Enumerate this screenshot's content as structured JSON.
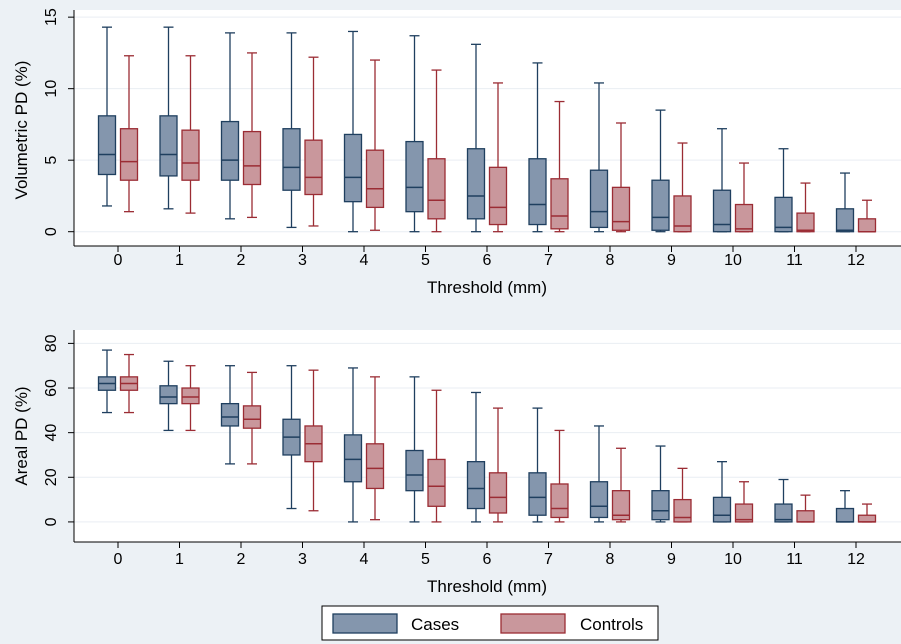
{
  "colors": {
    "cases_fill": "#8496ad",
    "cases_line": "#1f3f5f",
    "controls_fill": "#c9979c",
    "controls_line": "#9b2c34",
    "background": "#ecf1f5",
    "plot_area": "#ffffff",
    "grid": "#e9eef3"
  },
  "chart_data": [
    {
      "type": "box",
      "xlabel": "Threshold (mm)",
      "ylabel": "Volumetric PD (%)",
      "categories": [
        "0",
        "1",
        "2",
        "3",
        "4",
        "5",
        "6",
        "7",
        "8",
        "9",
        "10",
        "11",
        "12"
      ],
      "yticks": [
        0,
        5,
        10,
        15
      ],
      "ylim": [
        -1,
        15.5
      ],
      "grid": true,
      "series": [
        {
          "name": "Cases",
          "boxes": [
            {
              "min": 1.8,
              "q1": 4.0,
              "median": 5.4,
              "q3": 8.1,
              "max": 14.3
            },
            {
              "min": 1.6,
              "q1": 3.9,
              "median": 5.4,
              "q3": 8.1,
              "max": 14.3
            },
            {
              "min": 0.9,
              "q1": 3.6,
              "median": 5.0,
              "q3": 7.7,
              "max": 13.9
            },
            {
              "min": 0.3,
              "q1": 2.9,
              "median": 4.5,
              "q3": 7.2,
              "max": 13.9
            },
            {
              "min": 0.0,
              "q1": 2.1,
              "median": 3.8,
              "q3": 6.8,
              "max": 14.0
            },
            {
              "min": 0.0,
              "q1": 1.4,
              "median": 3.1,
              "q3": 6.3,
              "max": 13.7
            },
            {
              "min": 0.0,
              "q1": 0.9,
              "median": 2.5,
              "q3": 5.8,
              "max": 13.1
            },
            {
              "min": 0.0,
              "q1": 0.5,
              "median": 1.9,
              "q3": 5.1,
              "max": 11.8
            },
            {
              "min": 0.0,
              "q1": 0.3,
              "median": 1.4,
              "q3": 4.3,
              "max": 10.4
            },
            {
              "min": 0.0,
              "q1": 0.1,
              "median": 1.0,
              "q3": 3.6,
              "max": 8.5
            },
            {
              "min": 0.0,
              "q1": 0.0,
              "median": 0.5,
              "q3": 2.9,
              "max": 7.2
            },
            {
              "min": 0.0,
              "q1": 0.0,
              "median": 0.3,
              "q3": 2.4,
              "max": 5.8
            },
            {
              "min": 0.0,
              "q1": 0.0,
              "median": 0.1,
              "q3": 1.6,
              "max": 4.1
            }
          ]
        },
        {
          "name": "Controls",
          "boxes": [
            {
              "min": 1.4,
              "q1": 3.6,
              "median": 4.9,
              "q3": 7.2,
              "max": 12.3
            },
            {
              "min": 1.3,
              "q1": 3.6,
              "median": 4.8,
              "q3": 7.1,
              "max": 12.3
            },
            {
              "min": 1.0,
              "q1": 3.3,
              "median": 4.6,
              "q3": 7.0,
              "max": 12.5
            },
            {
              "min": 0.4,
              "q1": 2.6,
              "median": 3.8,
              "q3": 6.4,
              "max": 12.2
            },
            {
              "min": 0.1,
              "q1": 1.7,
              "median": 3.0,
              "q3": 5.7,
              "max": 12.0
            },
            {
              "min": 0.0,
              "q1": 0.9,
              "median": 2.2,
              "q3": 5.1,
              "max": 11.3
            },
            {
              "min": 0.0,
              "q1": 0.5,
              "median": 1.7,
              "q3": 4.5,
              "max": 10.4
            },
            {
              "min": 0.0,
              "q1": 0.2,
              "median": 1.1,
              "q3": 3.7,
              "max": 9.1
            },
            {
              "min": 0.0,
              "q1": 0.1,
              "median": 0.7,
              "q3": 3.1,
              "max": 7.6
            },
            {
              "min": 0.0,
              "q1": 0.0,
              "median": 0.4,
              "q3": 2.5,
              "max": 6.2
            },
            {
              "min": 0.0,
              "q1": 0.0,
              "median": 0.2,
              "q3": 1.9,
              "max": 4.8
            },
            {
              "min": 0.0,
              "q1": 0.0,
              "median": 0.1,
              "q3": 1.3,
              "max": 3.4
            },
            {
              "min": 0.0,
              "q1": 0.0,
              "median": 0.0,
              "q3": 0.9,
              "max": 2.2
            }
          ]
        }
      ]
    },
    {
      "type": "box",
      "xlabel": "Threshold (mm)",
      "ylabel": "Areal PD (%)",
      "categories": [
        "0",
        "1",
        "2",
        "3",
        "4",
        "5",
        "6",
        "7",
        "8",
        "9",
        "10",
        "11",
        "12"
      ],
      "yticks": [
        0,
        20,
        40,
        60,
        80
      ],
      "ylim": [
        -9,
        86
      ],
      "grid": true,
      "series": [
        {
          "name": "Cases",
          "boxes": [
            {
              "min": 49,
              "q1": 59,
              "median": 62,
              "q3": 65,
              "max": 77
            },
            {
              "min": 41,
              "q1": 53,
              "median": 56,
              "q3": 61,
              "max": 72
            },
            {
              "min": 26,
              "q1": 43,
              "median": 47,
              "q3": 53,
              "max": 70
            },
            {
              "min": 6,
              "q1": 30,
              "median": 38,
              "q3": 46,
              "max": 70
            },
            {
              "min": 0,
              "q1": 18,
              "median": 28,
              "q3": 39,
              "max": 69
            },
            {
              "min": 0,
              "q1": 14,
              "median": 21,
              "q3": 32,
              "max": 65
            },
            {
              "min": 0,
              "q1": 6,
              "median": 15,
              "q3": 27,
              "max": 58
            },
            {
              "min": 0,
              "q1": 3,
              "median": 11,
              "q3": 22,
              "max": 51
            },
            {
              "min": 0,
              "q1": 2,
              "median": 7,
              "q3": 18,
              "max": 43
            },
            {
              "min": 0,
              "q1": 1,
              "median": 5,
              "q3": 14,
              "max": 34
            },
            {
              "min": 0,
              "q1": 0,
              "median": 3,
              "q3": 11,
              "max": 27
            },
            {
              "min": 0,
              "q1": 0,
              "median": 1,
              "q3": 8,
              "max": 19
            },
            {
              "min": 0,
              "q1": 0,
              "median": 0,
              "q3": 6,
              "max": 14
            }
          ]
        },
        {
          "name": "Controls",
          "boxes": [
            {
              "min": 49,
              "q1": 59,
              "median": 62,
              "q3": 65,
              "max": 75
            },
            {
              "min": 41,
              "q1": 53,
              "median": 56,
              "q3": 60,
              "max": 70
            },
            {
              "min": 26,
              "q1": 42,
              "median": 46,
              "q3": 52,
              "max": 67
            },
            {
              "min": 5,
              "q1": 27,
              "median": 35,
              "q3": 43,
              "max": 68
            },
            {
              "min": 1,
              "q1": 15,
              "median": 24,
              "q3": 35,
              "max": 65
            },
            {
              "min": 0,
              "q1": 7,
              "median": 16,
              "q3": 28,
              "max": 59
            },
            {
              "min": 0,
              "q1": 4,
              "median": 11,
              "q3": 22,
              "max": 51
            },
            {
              "min": 0,
              "q1": 2,
              "median": 6,
              "q3": 17,
              "max": 41
            },
            {
              "min": 0,
              "q1": 1,
              "median": 3,
              "q3": 14,
              "max": 33
            },
            {
              "min": 0,
              "q1": 0,
              "median": 2,
              "q3": 10,
              "max": 24
            },
            {
              "min": 0,
              "q1": 0,
              "median": 1,
              "q3": 8,
              "max": 18
            },
            {
              "min": 0,
              "q1": 0,
              "median": 0,
              "q3": 5,
              "max": 12
            },
            {
              "min": 0,
              "q1": 0,
              "median": 0,
              "q3": 3,
              "max": 8
            }
          ]
        }
      ]
    }
  ],
  "legend": {
    "items": [
      {
        "label": "Cases"
      },
      {
        "label": "Controls"
      }
    ]
  }
}
